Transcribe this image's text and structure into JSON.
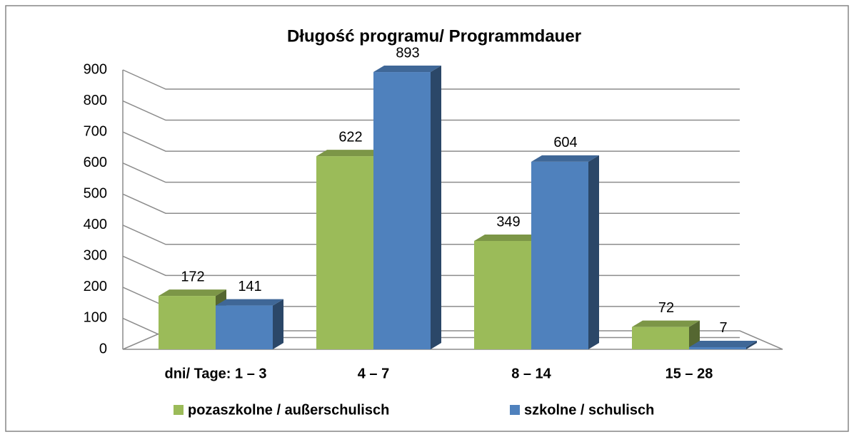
{
  "chart_data": {
    "type": "bar3d",
    "title": "Długość programu/ Programmdauer",
    "categories": [
      "dni/ Tage: 1 – 3",
      "4 – 7",
      "8 – 14",
      "15 – 28"
    ],
    "series": [
      {
        "name": "pozaszkolne / außerschulisch",
        "color": "#9bbb59",
        "values": [
          172,
          622,
          349,
          72
        ]
      },
      {
        "name": "szkolne / schulisch",
        "color": "#4f81bd",
        "values": [
          141,
          893,
          604,
          7
        ]
      }
    ],
    "ylim": [
      0,
      900
    ],
    "yticks": [
      0,
      100,
      200,
      300,
      400,
      500,
      600,
      700,
      800,
      900
    ],
    "grid": true,
    "legend": "bottom"
  }
}
